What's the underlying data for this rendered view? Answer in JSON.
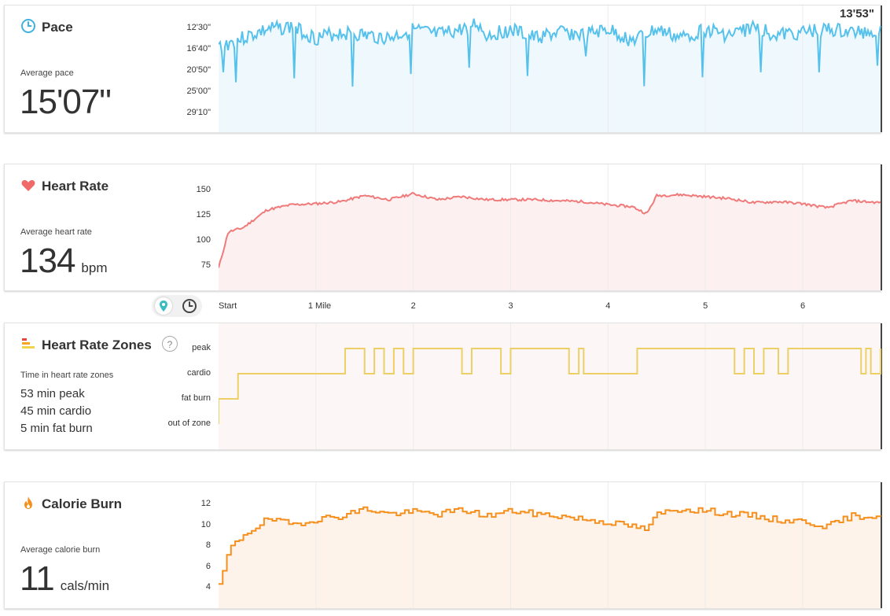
{
  "pace": {
    "title": "Pace",
    "icon": "clock-icon",
    "sub_label": "Average pace",
    "value": "15'07\"",
    "cursor_value": "13'53\"",
    "y_ticks": [
      "12'30\"",
      "16'40\"",
      "20'50\"",
      "25'00\"",
      "29'10\""
    ],
    "color": "#56c2ec",
    "fill": "#eef8fd"
  },
  "heart_rate": {
    "title": "Heart Rate",
    "icon": "heart-icon",
    "sub_label": "Average heart rate",
    "value": "134",
    "unit": "bpm",
    "y_ticks": [
      "150",
      "125",
      "100",
      "75"
    ],
    "color": "#f07a7a",
    "fill": "#fdf0f0"
  },
  "distance_axis": {
    "labels": [
      "Start",
      "1 Mile",
      "2",
      "3",
      "4",
      "5",
      "6"
    ],
    "toggle": {
      "map_icon": "map-pin-icon",
      "time_icon": "clock-icon",
      "selected": "map-pin-icon"
    }
  },
  "zones": {
    "title": "Heart Rate Zones",
    "icon": "zone-bars-icon",
    "help": "?",
    "sub_label": "Time in heart rate zones",
    "lines": [
      "53 min peak",
      "45 min cardio",
      "5 min fat burn"
    ],
    "y_ticks": [
      "peak",
      "cardio",
      "fat burn",
      "out of zone"
    ],
    "color": "#ecd066",
    "fill": "#fdf6f6"
  },
  "calories": {
    "title": "Calorie Burn",
    "icon": "flame-icon",
    "sub_label": "Average calorie burn",
    "value": "11",
    "unit": "cals/min",
    "y_ticks": [
      "12",
      "10",
      "8",
      "6",
      "4"
    ],
    "color": "#f5901f",
    "fill": "#fdf3ea"
  },
  "chart_data": [
    {
      "type": "line",
      "name": "Pace",
      "x": [
        0,
        0.25,
        0.5,
        0.75,
        1,
        1.25,
        1.5,
        1.75,
        2,
        2.25,
        2.5,
        2.65,
        2.75,
        3,
        3.25,
        3.5,
        3.75,
        4,
        4.25,
        4.5,
        4.75,
        5,
        5.25,
        5.5,
        5.75,
        6,
        6.25,
        6.5,
        6.8
      ],
      "y": [
        17.0,
        15.5,
        14.0,
        13.5,
        15.5,
        14.5,
        15.0,
        15.5,
        14.0,
        15.0,
        14.0,
        12.8,
        15.0,
        14.0,
        15.5,
        14.5,
        15.0,
        14.0,
        16.0,
        14.0,
        15.5,
        14.0,
        15.0,
        13.5,
        15.0,
        14.5,
        14.0,
        14.5,
        14.2
      ],
      "yticks": [
        "12'30\"",
        "16'40\"",
        "20'50\"",
        "25'00\"",
        "29'10\""
      ]
    },
    {
      "type": "line",
      "name": "Heart Rate",
      "x": [
        0,
        0.1,
        0.25,
        0.5,
        0.75,
        1,
        1.25,
        1.5,
        1.75,
        2,
        2.25,
        2.5,
        2.75,
        3,
        3.25,
        3.5,
        3.75,
        4,
        4.25,
        4.4,
        4.5,
        4.75,
        5,
        5.25,
        5.5,
        5.75,
        6,
        6.25,
        6.5,
        6.8
      ],
      "y": [
        72,
        108,
        112,
        130,
        135,
        136,
        138,
        144,
        140,
        146,
        140,
        143,
        140,
        140,
        140,
        139,
        138,
        135,
        133,
        126,
        144,
        145,
        143,
        141,
        137,
        138,
        136,
        132,
        139,
        137
      ],
      "yticks": [
        150,
        125,
        100,
        75
      ]
    },
    {
      "type": "line",
      "name": "Heart Rate Zones",
      "x": [
        0,
        0.2,
        0.5,
        1,
        1.3,
        1.5,
        1.6,
        1.7,
        1.8,
        1.9,
        2.0,
        2.05,
        2.5,
        2.6,
        2.75,
        2.9,
        3.0,
        3.6,
        3.7,
        3.75,
        4.3,
        4.5,
        5.0,
        5.3,
        5.4,
        5.5,
        5.6,
        5.75,
        5.85,
        6.6,
        6.65,
        6.7,
        6.8
      ],
      "y": [
        "fat burn",
        "cardio",
        "cardio",
        "cardio",
        "peak",
        "cardio",
        "peak",
        "cardio",
        "peak",
        "cardio",
        "peak",
        "peak",
        "cardio",
        "peak",
        "peak",
        "cardio",
        "peak",
        "cardio",
        "peak",
        "cardio",
        "peak",
        "peak",
        "peak",
        "cardio",
        "peak",
        "cardio",
        "peak",
        "cardio",
        "peak",
        "cardio",
        "peak",
        "cardio",
        "peak"
      ],
      "yticks": [
        "peak",
        "cardio",
        "fat burn",
        "out of zone"
      ]
    },
    {
      "type": "line",
      "name": "Calorie Burn",
      "x": [
        0,
        0.1,
        0.25,
        0.5,
        0.75,
        1,
        1.25,
        1.5,
        1.75,
        2,
        2.25,
        2.5,
        2.75,
        3,
        3.25,
        3.5,
        3.75,
        4,
        4.25,
        4.4,
        4.5,
        4.75,
        5,
        5.25,
        5.5,
        5.75,
        6,
        6.25,
        6.5,
        6.8
      ],
      "y": [
        4,
        7.5,
        9,
        10.5,
        10,
        10.5,
        10.8,
        11.5,
        11,
        11.2,
        11,
        11.4,
        10.8,
        11.3,
        11.0,
        10.8,
        10.5,
        10.2,
        9.8,
        9.5,
        11.0,
        11.5,
        11.3,
        11.0,
        10.8,
        10.4,
        10.3,
        9.8,
        10.8,
        10.8
      ],
      "yticks": [
        12,
        10,
        8,
        6,
        4
      ]
    }
  ]
}
